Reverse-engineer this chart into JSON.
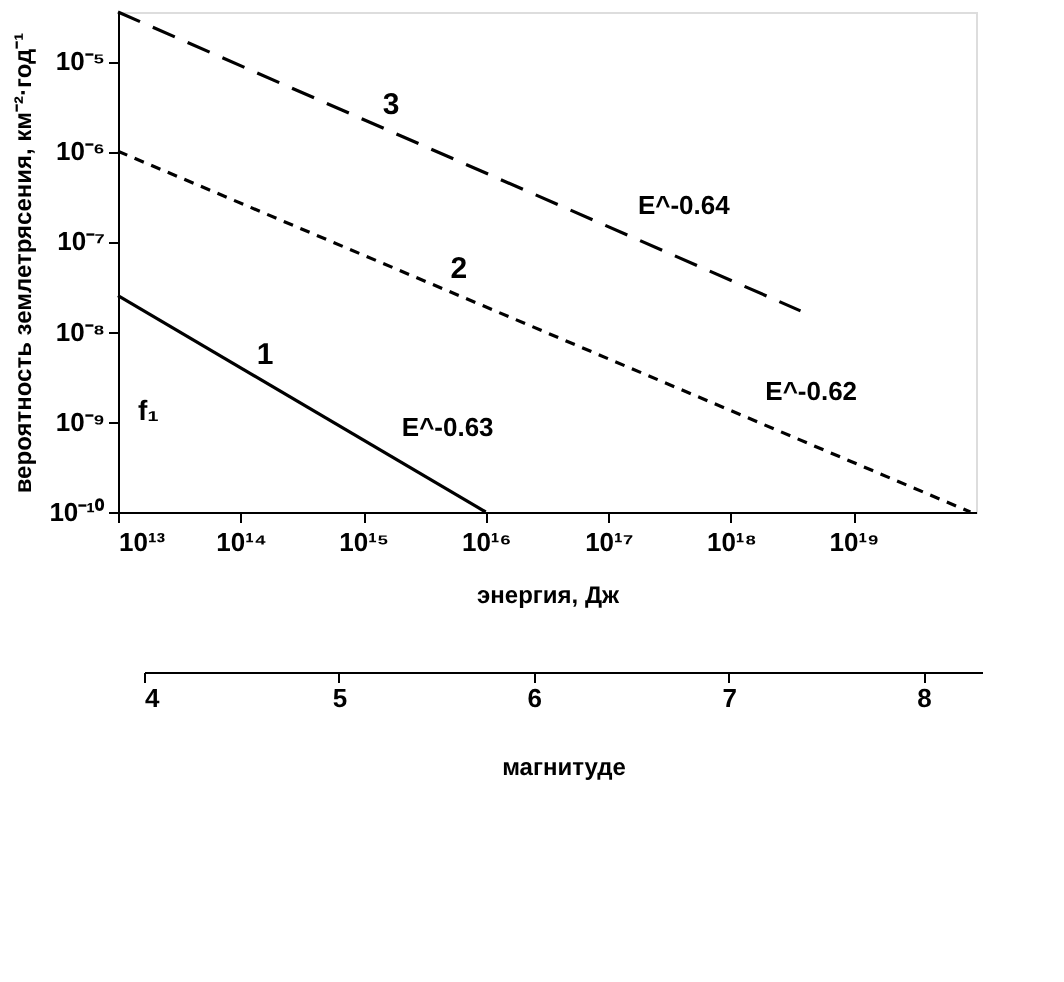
{
  "chart_data": {
    "type": "line",
    "xlabel": "энергия, Дж",
    "ylabel": "вероятность землетрясения, км⁻²·год⁻¹",
    "x2label": "магнитуде",
    "log": "xy",
    "xlim": [
      10000000000000.0,
      1e+20
    ],
    "ylim": [
      1e-10,
      3.5e-05
    ],
    "xticks": [
      {
        "value": 10000000000000.0,
        "label": "10¹³"
      },
      {
        "value": 100000000000000.0,
        "label": "10¹⁴"
      },
      {
        "value": 1000000000000000.0,
        "label": "10¹⁵"
      },
      {
        "value": 1e+16,
        "label": "10¹⁶"
      },
      {
        "value": 1e+17,
        "label": "10¹⁷"
      },
      {
        "value": 1e+18,
        "label": "10¹⁸"
      },
      {
        "value": 1e+19,
        "label": "10¹⁹"
      }
    ],
    "yticks": [
      {
        "value": 1e-10,
        "label": "10⁻¹⁰"
      },
      {
        "value": 1e-09,
        "label": "10⁻⁹"
      },
      {
        "value": 1e-08,
        "label": "10⁻⁸"
      },
      {
        "value": 1e-07,
        "label": "10⁻⁷"
      },
      {
        "value": 1e-06,
        "label": "10⁻⁶"
      },
      {
        "value": 1e-05,
        "label": "10⁻⁵"
      }
    ],
    "x2lim": [
      4,
      8.3
    ],
    "x2ticks": [
      4,
      5,
      6,
      7,
      8
    ],
    "grid": false,
    "marker": "none",
    "series": [
      {
        "name": "1",
        "color": "#000000",
        "line_style": "solid",
        "x": [
          10000000000000.0,
          1e+16
        ],
        "values": [
          2.5e-08,
          1e-10
        ]
      },
      {
        "name": "2",
        "color": "#000000",
        "line_style": "dotted",
        "x": [
          10000000000000.0,
          9e+19
        ],
        "values": [
          1e-06,
          1e-10
        ]
      },
      {
        "name": "3",
        "color": "#000000",
        "line_style": "dashed",
        "x": [
          10000000000000.0,
          3.7e+18
        ],
        "values": [
          3.5e-05,
          1.7e-08
        ]
      }
    ],
    "annotations": [
      "E^-0.64",
      "E^-0.62",
      "E^-0.63",
      "f₁"
    ]
  }
}
